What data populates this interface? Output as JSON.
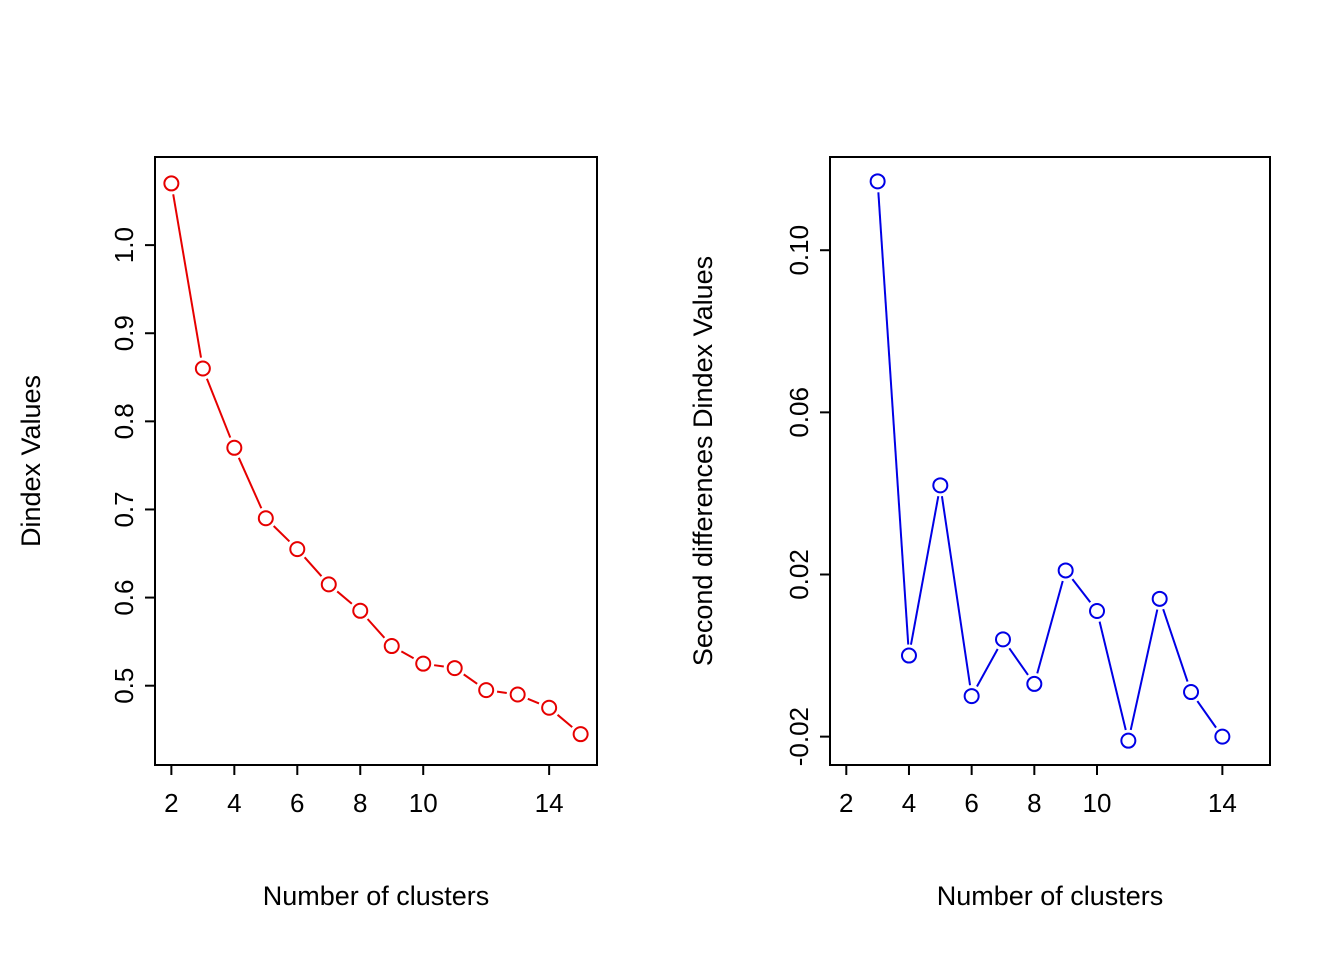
{
  "figure": {
    "description": "Two-panel NbClust diagnostic plot",
    "background": "#ffffff",
    "foreground": "#000000"
  },
  "chart_data": [
    {
      "type": "line",
      "title": "",
      "xlabel": "Number of clusters",
      "ylabel": "Dindex Values",
      "marker": "open-circle",
      "line_style": "segments-between-points",
      "legend": "none",
      "xlim": [
        1.48,
        15.52
      ],
      "ylim": [
        0.41,
        1.1
      ],
      "xtick_values": [
        2,
        4,
        6,
        8,
        10,
        14
      ],
      "xtick_labels": [
        "2",
        "4",
        "6",
        "8",
        "10",
        "14"
      ],
      "ytick_values": [
        0.5,
        0.6,
        0.7,
        0.8,
        0.9,
        1.0
      ],
      "ytick_labels": [
        "0.5",
        "0.6",
        "0.7",
        "0.8",
        "0.9",
        "1.0"
      ],
      "series": [
        {
          "name": "Dindex",
          "color": "#e60000",
          "x": [
            2,
            3,
            4,
            5,
            6,
            7,
            8,
            9,
            10,
            11,
            12,
            13,
            14,
            15
          ],
          "y": [
            1.07,
            0.86,
            0.77,
            0.69,
            0.655,
            0.615,
            0.585,
            0.545,
            0.525,
            0.52,
            0.495,
            0.49,
            0.475,
            0.445
          ]
        }
      ]
    },
    {
      "type": "line",
      "title": "",
      "xlabel": "Number of clusters",
      "ylabel": "Second differences Dindex Values",
      "marker": "open-circle",
      "line_style": "segments-between-points",
      "legend": "none",
      "xlim": [
        1.48,
        15.52
      ],
      "ylim": [
        -0.027,
        0.123
      ],
      "xtick_values": [
        2,
        4,
        6,
        8,
        10,
        14
      ],
      "xtick_labels": [
        "2",
        "4",
        "6",
        "8",
        "10",
        "14"
      ],
      "ytick_values": [
        -0.02,
        0.02,
        0.06,
        0.1
      ],
      "ytick_labels": [
        "-0.02",
        "0.02",
        "0.06",
        "0.10"
      ],
      "series": [
        {
          "name": "Second differences Dindex",
          "color": "#0000e6",
          "x": [
            3,
            4,
            5,
            6,
            7,
            8,
            9,
            10,
            11,
            12,
            13,
            14
          ],
          "y": [
            0.117,
            0.0,
            0.042,
            -0.01,
            0.004,
            -0.007,
            0.021,
            0.011,
            -0.021,
            0.014,
            -0.009,
            -0.02
          ]
        }
      ]
    }
  ]
}
